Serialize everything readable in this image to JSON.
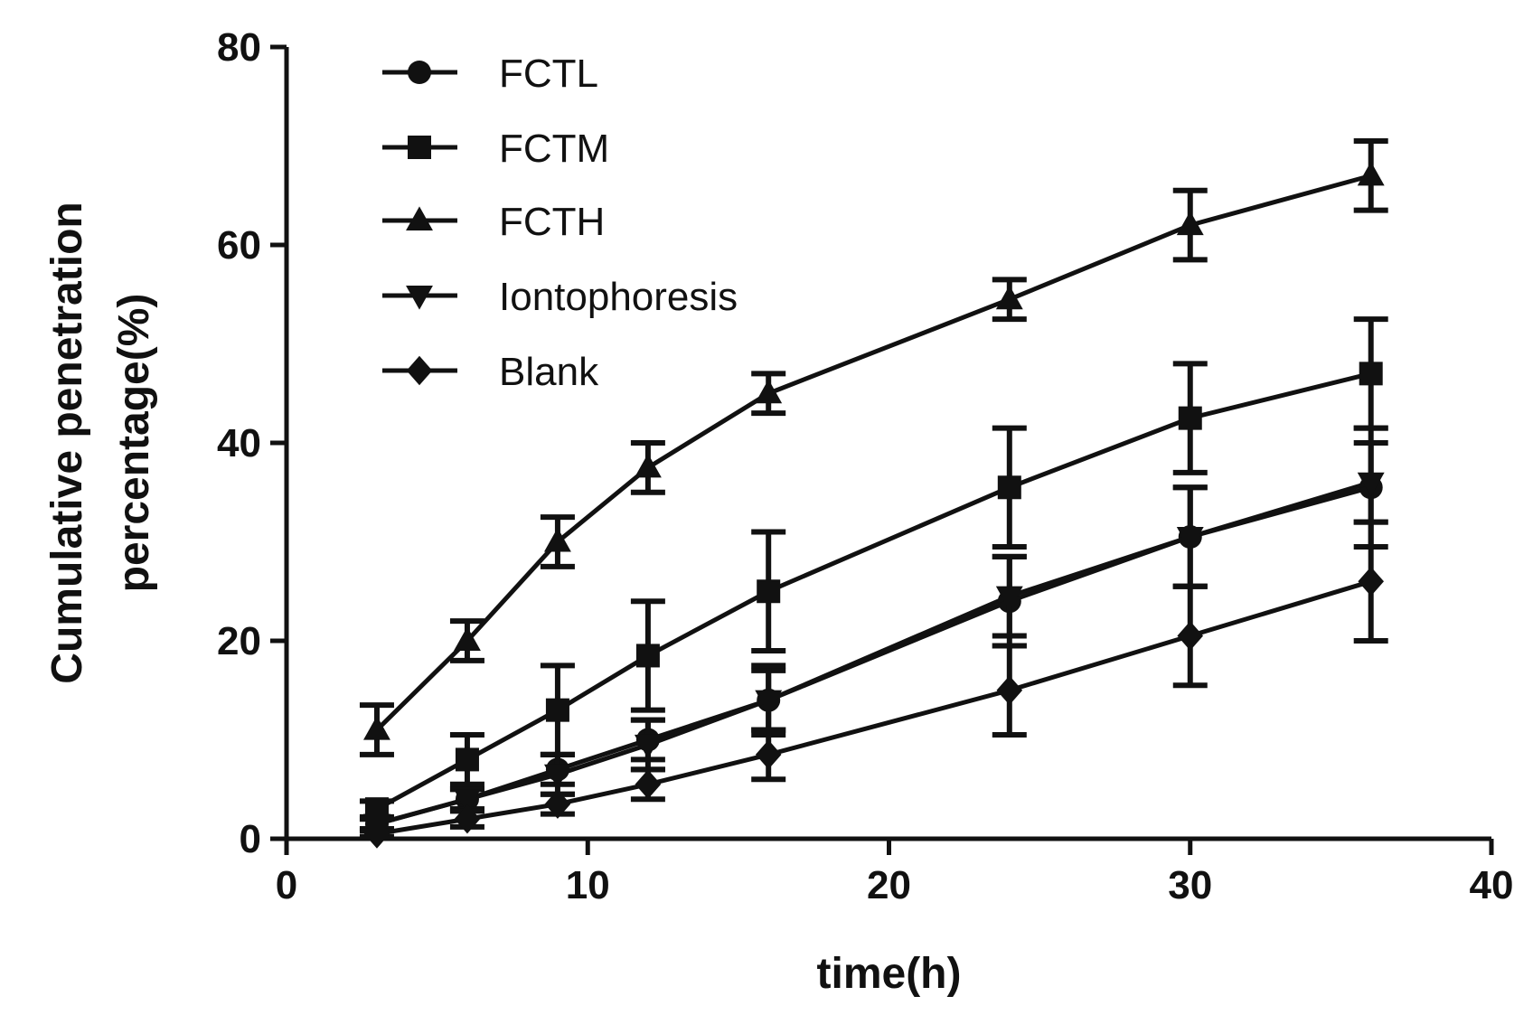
{
  "chart_data": {
    "type": "line",
    "title": "",
    "xlabel": "time(h)",
    "ylabel_line1": "Cumulative penetration",
    "ylabel_line2": "percentage(%)",
    "xlim": [
      0,
      40
    ],
    "ylim": [
      0,
      80
    ],
    "xticks": [
      0,
      10,
      20,
      30,
      40
    ],
    "yticks": [
      0,
      20,
      40,
      60,
      80
    ],
    "grid": false,
    "legend_position": "top-left",
    "x": [
      3,
      6,
      9,
      12,
      16,
      24,
      30,
      36
    ],
    "series": [
      {
        "name": "FCTL",
        "marker": "circle",
        "values": [
          1.5,
          4,
          7,
          10,
          14,
          24,
          30.5,
          35.5
        ],
        "errors": [
          0.5,
          1.0,
          1.5,
          2.0,
          3.0,
          4.5,
          5.0,
          6.0
        ]
      },
      {
        "name": "FCTM",
        "marker": "square",
        "values": [
          3,
          8,
          13,
          18.5,
          25,
          35.5,
          42.5,
          47
        ],
        "errors": [
          0.8,
          2.5,
          4.5,
          5.5,
          6.0,
          6.0,
          5.5,
          5.5
        ]
      },
      {
        "name": "FCTH",
        "marker": "triangle-up",
        "values": [
          11,
          20,
          30,
          37.5,
          45,
          54.5,
          62,
          67
        ],
        "errors": [
          2.5,
          2.0,
          2.5,
          2.5,
          2.0,
          2.0,
          3.5,
          3.5
        ]
      },
      {
        "name": "Iontophoresis",
        "marker": "triangle-down",
        "values": [
          1.5,
          4,
          6.5,
          9.5,
          14,
          24.5,
          30.5,
          36
        ],
        "errors": [
          0.5,
          1.0,
          2.0,
          2.5,
          3.5,
          4.0,
          5.0,
          4.0
        ]
      },
      {
        "name": "Blank",
        "marker": "diamond",
        "values": [
          0.5,
          2,
          3.5,
          5.5,
          8.5,
          15,
          20.5,
          26
        ],
        "errors": [
          0.3,
          0.8,
          1.0,
          1.5,
          2.5,
          4.5,
          5.0,
          6.0
        ]
      }
    ]
  }
}
